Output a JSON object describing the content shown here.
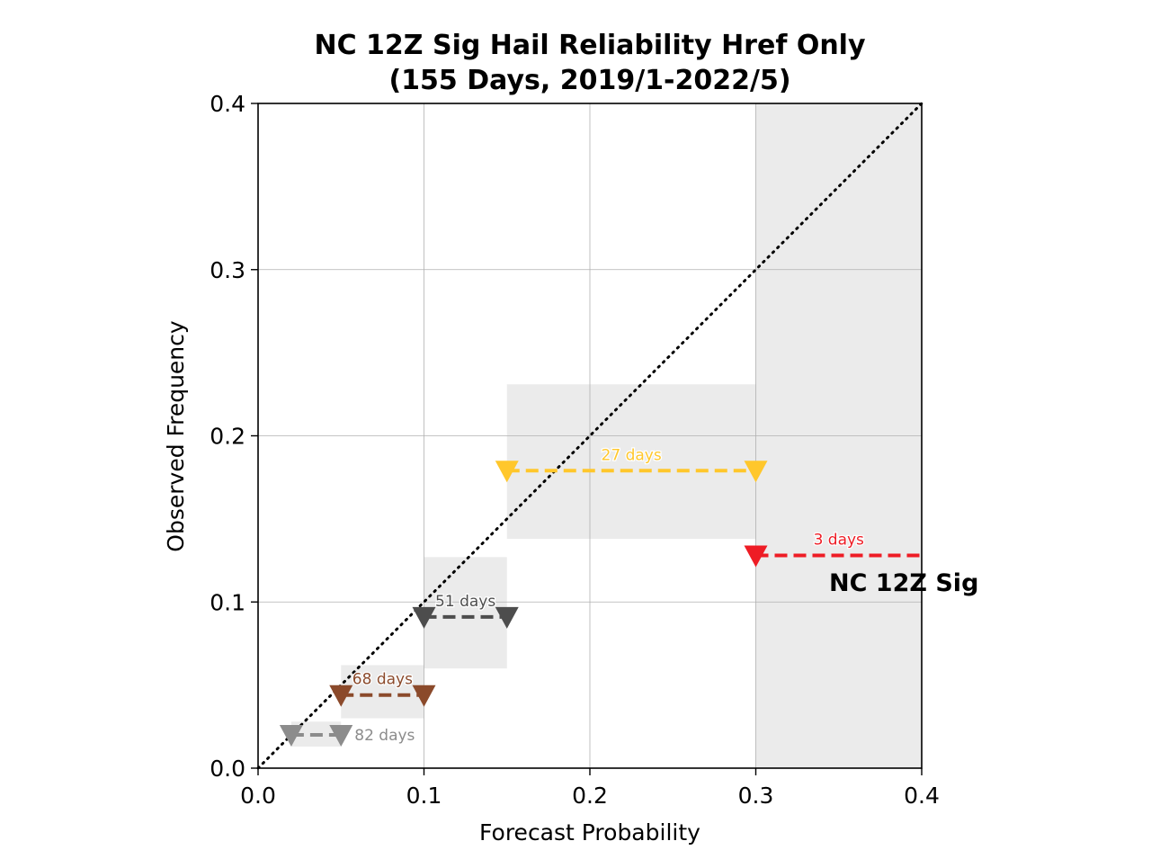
{
  "chart_data": {
    "type": "scatter",
    "title": "NC 12Z Sig Hail Reliability Href Only",
    "subtitle": "(155 Days, 2019/1-2022/5)",
    "xlabel": "Forecast Probability",
    "ylabel": "Observed Frequency",
    "xlim": [
      0.0,
      0.4
    ],
    "ylim": [
      0.0,
      0.4
    ],
    "xticks": [
      "0.0",
      "0.1",
      "0.2",
      "0.3",
      "0.4"
    ],
    "yticks": [
      "0.0",
      "0.1",
      "0.2",
      "0.3",
      "0.4"
    ],
    "grid": true,
    "diagonal": "dotted perfect-reliability line from (0,0) to (0.4,0.4)",
    "series_label": "NC 12Z Sig",
    "bins": [
      {
        "x_start": 0.02,
        "x_end": 0.05,
        "observed": 0.02,
        "band_low": 0.013,
        "band_high": 0.028,
        "label": "82 days",
        "color": "#8c8c8c"
      },
      {
        "x_start": 0.05,
        "x_end": 0.1,
        "observed": 0.044,
        "band_low": 0.03,
        "band_high": 0.062,
        "label": "68 days",
        "color": "#8b4a2b"
      },
      {
        "x_start": 0.1,
        "x_end": 0.15,
        "observed": 0.091,
        "band_low": 0.06,
        "band_high": 0.127,
        "label": "51 days",
        "color": "#4d4d4d"
      },
      {
        "x_start": 0.15,
        "x_end": 0.3,
        "observed": 0.179,
        "band_low": 0.138,
        "band_high": 0.231,
        "label": "27 days",
        "color": "#ffc72c"
      },
      {
        "x_start": 0.3,
        "x_end": 0.4,
        "observed": 0.128,
        "band_low": 0.0,
        "band_high": 0.4,
        "label": "3 days",
        "color": "#ee1c25"
      }
    ]
  }
}
